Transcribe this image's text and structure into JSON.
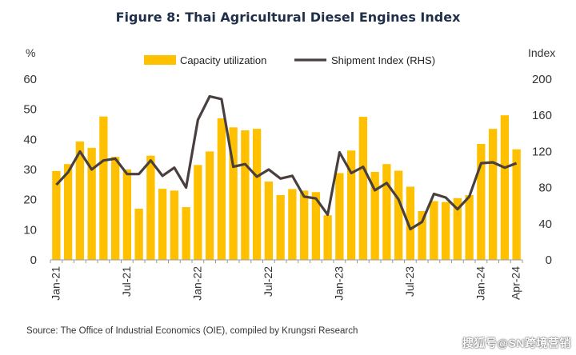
{
  "chart_data": {
    "type": "bar",
    "title": "Figure 8: Thai Agricultural Diesel Engines Index",
    "left_axis_unit": "%",
    "right_axis_unit": "Index",
    "ylim_left": [
      0,
      60
    ],
    "ylim_right": [
      0,
      200
    ],
    "yticks_left": [
      "0",
      "10",
      "20",
      "30",
      "40",
      "50",
      "60"
    ],
    "yticks_right": [
      "0",
      "40",
      "80",
      "120",
      "160",
      "200"
    ],
    "grid": false,
    "legend_position": "top",
    "x_tick_labels": [
      {
        "index": 0,
        "label": "Jan-21"
      },
      {
        "index": 6,
        "label": "Jul-21"
      },
      {
        "index": 12,
        "label": "Jan-22"
      },
      {
        "index": 18,
        "label": "Jul-22"
      },
      {
        "index": 24,
        "label": "Jan-23"
      },
      {
        "index": 30,
        "label": "Jul-23"
      },
      {
        "index": 36,
        "label": "Jan-24"
      },
      {
        "index": 39,
        "label": "Apr-24"
      }
    ],
    "categories": [
      "Jan-21",
      "Feb-21",
      "Mar-21",
      "Apr-21",
      "May-21",
      "Jun-21",
      "Jul-21",
      "Aug-21",
      "Sep-21",
      "Oct-21",
      "Nov-21",
      "Dec-21",
      "Jan-22",
      "Feb-22",
      "Mar-22",
      "Apr-22",
      "May-22",
      "Jun-22",
      "Jul-22",
      "Aug-22",
      "Sep-22",
      "Oct-22",
      "Nov-22",
      "Dec-22",
      "Jan-23",
      "Feb-23",
      "Mar-23",
      "Apr-23",
      "May-23",
      "Jun-23",
      "Jul-23",
      "Aug-23",
      "Sep-23",
      "Oct-23",
      "Nov-23",
      "Dec-23",
      "Jan-24",
      "Feb-24",
      "Mar-24",
      "Apr-24"
    ],
    "series": [
      {
        "name": "Capacity utilization",
        "type": "bar",
        "axis": "left",
        "color": "#FFC000",
        "values": [
          29.5,
          31.8,
          39.3,
          37.2,
          47.6,
          34.2,
          30.0,
          17.0,
          34.6,
          23.6,
          23.0,
          17.5,
          31.5,
          36.0,
          47.0,
          44.0,
          43.0,
          43.5,
          26.0,
          21.5,
          23.5,
          23.0,
          22.5,
          14.8,
          28.8,
          36.3,
          47.5,
          29.2,
          31.8,
          29.6,
          24.3,
          16.2,
          19.5,
          19.2,
          20.5,
          21.5,
          38.5,
          43.5,
          48.0,
          36.7
        ]
      },
      {
        "name": "Shipment Index (RHS)",
        "type": "line",
        "axis": "right",
        "color": "#4A3F3F",
        "values": [
          83,
          97,
          120,
          100,
          110,
          112,
          95,
          95,
          110,
          93,
          102,
          80,
          155,
          181,
          178,
          103,
          106,
          92,
          100,
          90,
          93,
          70,
          68,
          50,
          119,
          96,
          103,
          77,
          85,
          67,
          34,
          42,
          73,
          69,
          56,
          70,
          107,
          108,
          102,
          107
        ]
      }
    ]
  },
  "source_note": "Source: The Office of Industrial Economics (OIE), compiled by Krungsri Research",
  "watermark": "搜狐号@SN跨境营销"
}
